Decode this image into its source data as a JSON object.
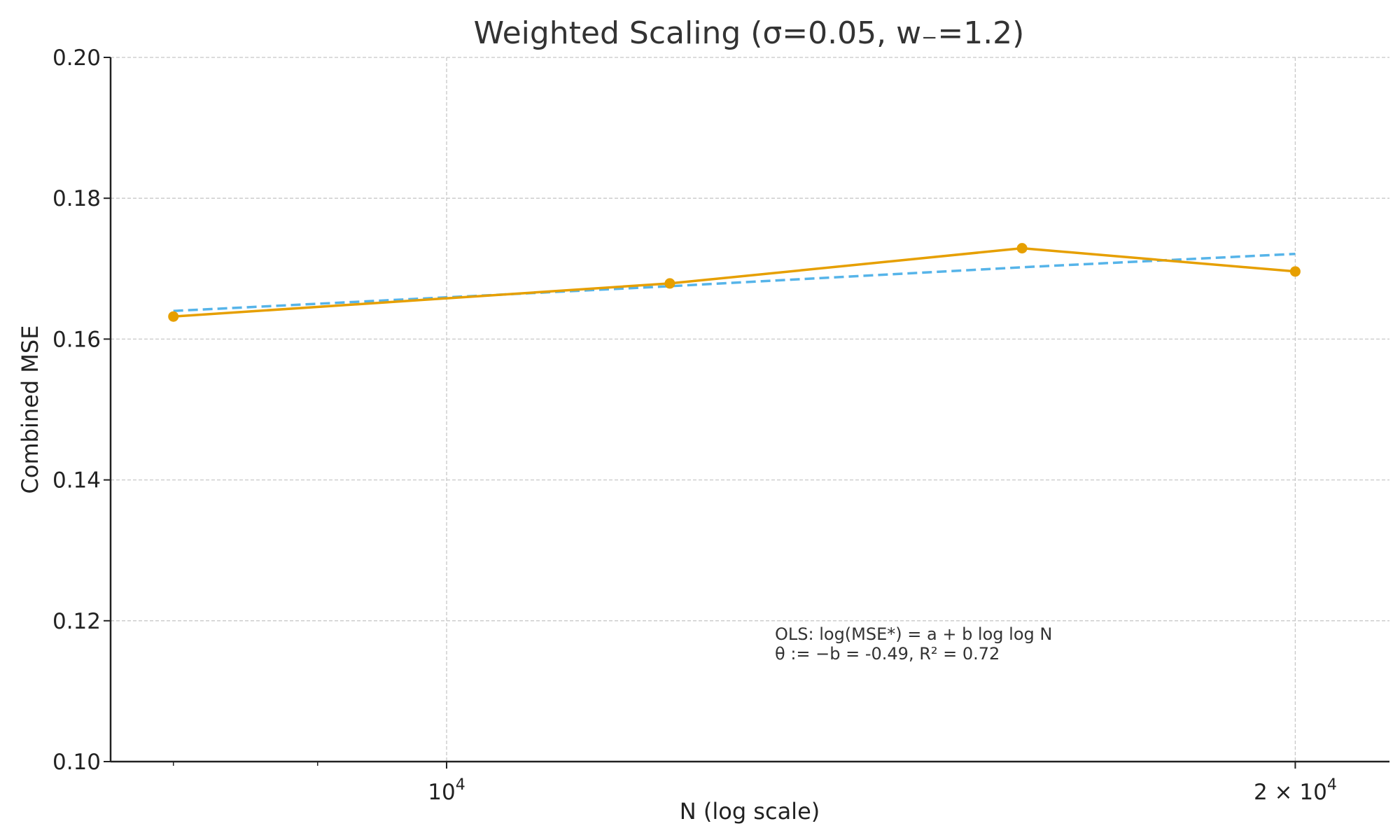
{
  "chart_data": {
    "type": "line",
    "title": "Weighted Scaling (σ=0.05, w₋=1.2)",
    "xlabel": "N (log scale)",
    "ylabel": "Combined MSE",
    "x_scale": "log",
    "xlim": [
      7600,
      21600
    ],
    "ylim": [
      0.1,
      0.2
    ],
    "yticks": [
      0.1,
      0.12,
      0.14,
      0.16,
      0.18,
      0.2
    ],
    "ytick_labels": [
      "0.10",
      "0.12",
      "0.14",
      "0.16",
      "0.18",
      "0.20"
    ],
    "xticks_major": [
      {
        "value": 10000,
        "base": "10",
        "exp": "4"
      },
      {
        "value": 20000,
        "base": "2 × 10",
        "exp": "4"
      }
    ],
    "xticks_minor": [
      8000,
      9000
    ],
    "grid": true,
    "series": [
      {
        "kind": "data",
        "color": "#E69F00",
        "style": "solid",
        "marker": "circle",
        "x": [
          8000,
          12000,
          16000,
          20000
        ],
        "y": [
          0.1632,
          0.1679,
          0.1729,
          0.1696
        ]
      },
      {
        "kind": "fit",
        "color": "#56B4E9",
        "style": "dashed",
        "x": [
          8000,
          12000,
          16000,
          20000
        ],
        "y": [
          0.164,
          0.1675,
          0.1702,
          0.1721
        ]
      }
    ],
    "annotation": {
      "lines": [
        "OLS: log(MSE*) = a + b log log N",
        "θ := −b = -0.49, R² = 0.72"
      ]
    }
  }
}
